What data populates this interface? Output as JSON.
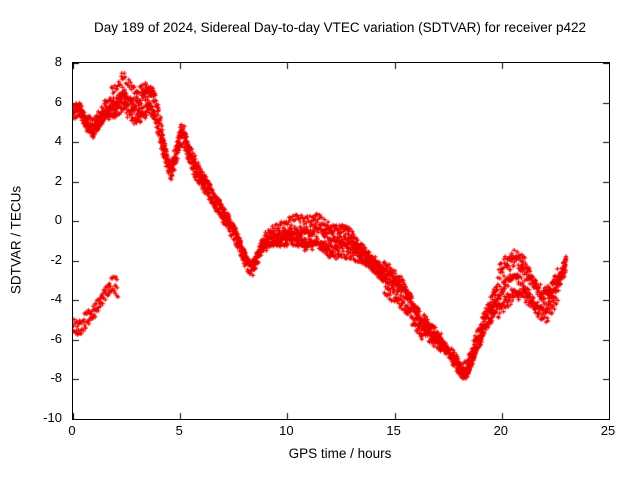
{
  "chart_data": {
    "type": "scatter",
    "title": "Day 189 of 2024, Sidereal Day-to-day VTEC variation (SDTVAR) for receiver p422",
    "xlabel": "GPS time / hours",
    "ylabel": "SDTVAR / TECUs",
    "xlim": [
      0,
      25
    ],
    "ylim": [
      -10,
      8
    ],
    "x_ticks": [
      0,
      5,
      10,
      15,
      20,
      25
    ],
    "y_ticks": [
      -10,
      -8,
      -6,
      -4,
      -2,
      0,
      2,
      4,
      6,
      8
    ],
    "grid": false,
    "legend": "none",
    "marker": "plus",
    "point_color": "#ee0000",
    "jitter": 0.3,
    "spread_regions": [
      {
        "x0": 1.8,
        "x1": 4.2,
        "k": 1.6
      },
      {
        "x0": 8.9,
        "x1": 13.2,
        "k": 1.4
      },
      {
        "x0": 14.5,
        "x1": 17.2,
        "k": 1.9
      },
      {
        "x0": 19.8,
        "x1": 22.6,
        "k": 2.0
      }
    ],
    "series": [
      {
        "name": "sidereal-day-to-day-vtec-main",
        "traces": 6,
        "amp_scale": 1.0,
        "points": [
          [
            0.0,
            5.4
          ],
          [
            0.3,
            5.6
          ],
          [
            0.6,
            4.9
          ],
          [
            0.9,
            4.5
          ],
          [
            1.2,
            4.9
          ],
          [
            1.5,
            5.4
          ],
          [
            1.8,
            5.6
          ],
          [
            2.1,
            5.9
          ],
          [
            2.3,
            6.4
          ],
          [
            2.5,
            6.2
          ],
          [
            2.7,
            5.9
          ],
          [
            2.9,
            5.7
          ],
          [
            3.1,
            5.8
          ],
          [
            3.4,
            6.1
          ],
          [
            3.6,
            6.2
          ],
          [
            3.8,
            5.9
          ],
          [
            4.0,
            5.0
          ],
          [
            4.2,
            4.0
          ],
          [
            4.4,
            3.0
          ],
          [
            4.6,
            2.6
          ],
          [
            4.8,
            3.4
          ],
          [
            5.0,
            4.4
          ],
          [
            5.2,
            4.3
          ],
          [
            5.4,
            3.5
          ],
          [
            5.6,
            3.0
          ],
          [
            5.8,
            2.5
          ],
          [
            6.0,
            2.1
          ],
          [
            6.3,
            1.6
          ],
          [
            6.6,
            1.0
          ],
          [
            6.9,
            0.5
          ],
          [
            7.2,
            0.0
          ],
          [
            7.5,
            -0.6
          ],
          [
            7.8,
            -1.3
          ],
          [
            8.0,
            -1.9
          ],
          [
            8.2,
            -2.3
          ],
          [
            8.4,
            -2.4
          ],
          [
            8.6,
            -1.9
          ],
          [
            8.8,
            -1.4
          ],
          [
            9.0,
            -1.2
          ],
          [
            9.3,
            -1.0
          ],
          [
            9.6,
            -0.9
          ],
          [
            9.9,
            -0.8
          ],
          [
            10.2,
            -0.6
          ],
          [
            10.5,
            -0.7
          ],
          [
            10.8,
            -0.8
          ],
          [
            11.1,
            -0.7
          ],
          [
            11.4,
            -0.6
          ],
          [
            11.7,
            -0.8
          ],
          [
            12.0,
            -1.0
          ],
          [
            12.3,
            -1.0
          ],
          [
            12.6,
            -0.9
          ],
          [
            12.9,
            -1.1
          ],
          [
            13.2,
            -1.4
          ],
          [
            13.5,
            -1.7
          ],
          [
            13.8,
            -2.0
          ],
          [
            14.1,
            -2.3
          ],
          [
            14.4,
            -2.7
          ],
          [
            14.7,
            -3.1
          ],
          [
            15.0,
            -3.4
          ],
          [
            15.3,
            -3.7
          ],
          [
            15.6,
            -4.1
          ],
          [
            15.9,
            -4.8
          ],
          [
            16.2,
            -5.4
          ],
          [
            16.5,
            -5.6
          ],
          [
            16.8,
            -5.9
          ],
          [
            17.1,
            -6.2
          ],
          [
            17.4,
            -6.5
          ],
          [
            17.7,
            -6.9
          ],
          [
            18.0,
            -7.4
          ],
          [
            18.2,
            -7.7
          ],
          [
            18.4,
            -7.5
          ],
          [
            18.6,
            -6.9
          ],
          [
            18.9,
            -6.0
          ],
          [
            19.2,
            -5.2
          ],
          [
            19.5,
            -4.5
          ],
          [
            19.8,
            -3.8
          ],
          [
            20.1,
            -3.2
          ],
          [
            20.4,
            -2.9
          ],
          [
            20.7,
            -2.7
          ],
          [
            21.0,
            -2.9
          ],
          [
            21.3,
            -3.4
          ],
          [
            21.6,
            -4.0
          ],
          [
            21.9,
            -4.4
          ],
          [
            22.2,
            -4.2
          ],
          [
            22.5,
            -3.6
          ],
          [
            22.8,
            -2.8
          ],
          [
            23.0,
            -2.2
          ]
        ]
      },
      {
        "name": "sidereal-day-to-day-vtec-early-lower-branch",
        "traces": 2,
        "amp_scale": 0.5,
        "points": [
          [
            0.0,
            -5.2
          ],
          [
            0.2,
            -5.5
          ],
          [
            0.4,
            -5.3
          ],
          [
            0.6,
            -5.0
          ],
          [
            0.8,
            -4.8
          ],
          [
            1.0,
            -4.6
          ],
          [
            1.2,
            -4.2
          ],
          [
            1.4,
            -3.8
          ],
          [
            1.6,
            -3.5
          ],
          [
            1.8,
            -3.4
          ],
          [
            2.0,
            -3.3
          ],
          [
            2.1,
            -3.6
          ]
        ]
      }
    ]
  }
}
